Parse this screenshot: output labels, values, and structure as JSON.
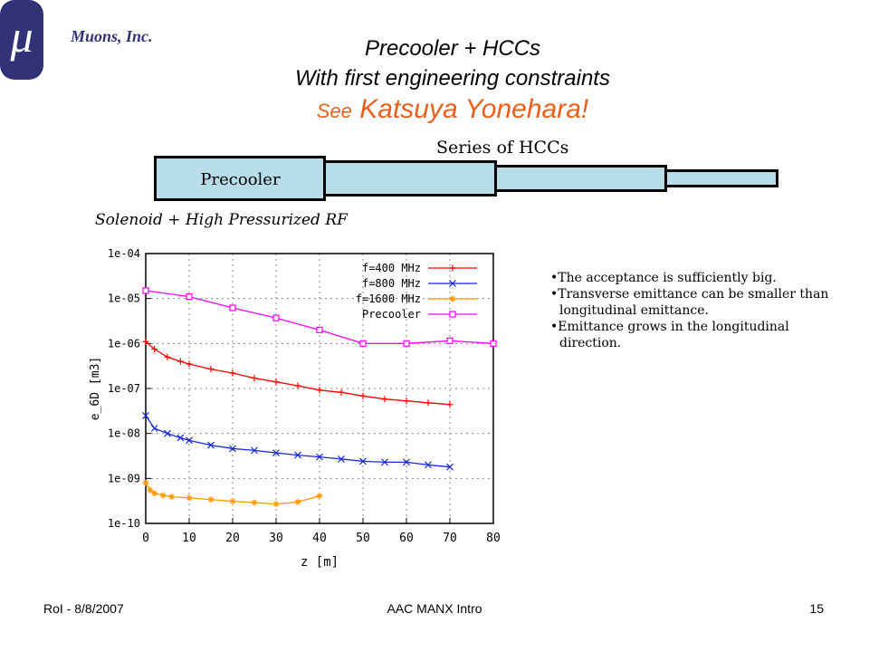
{
  "header": {
    "logo_symbol": "μ",
    "company": "Muons, Inc.",
    "title_line1": "Precooler + HCCs",
    "title_line2": "With first engineering constraints",
    "title_line3_see": "See",
    "title_line3_name": "Katsuya Yonehara!"
  },
  "diagram": {
    "hcc_label": "Series of HCCs",
    "precooler_label": "Precooler",
    "solenoid_label": "Solenoid + High Pressurized RF",
    "fill_color": "#b7dde8"
  },
  "bullets": [
    "The acceptance is sufficiently big.",
    "Transverse emittance can be smaller than longitudinal emittance.",
    "Emittance grows in the longitudinal direction."
  ],
  "footer": {
    "left": "RoI - 8/8/2007",
    "center": "AAC MANX Intro",
    "right": "15"
  },
  "chart_data": {
    "type": "line",
    "xlabel": "z [m]",
    "ylabel": "e_6D [m3]",
    "xlim": [
      0,
      80
    ],
    "ylim": [
      1e-10,
      0.0001
    ],
    "yscale": "log",
    "x_ticks": [
      "0",
      "10",
      "20",
      "30",
      "40",
      "50",
      "60",
      "70",
      "80"
    ],
    "y_ticks": [
      "1e-10",
      "1e-09",
      "1e-08",
      "1e-07",
      "1e-06",
      "1e-05",
      "1e-04"
    ],
    "grid": true,
    "legend_position": "top-right",
    "series": [
      {
        "name": "f=400 MHz",
        "color": "#ff0000",
        "marker": "plus",
        "x": [
          0,
          2,
          5,
          8,
          10,
          15,
          20,
          25,
          30,
          35,
          40,
          45,
          50,
          55,
          60,
          65,
          70
        ],
        "y": [
          1.1e-06,
          7.5e-07,
          5e-07,
          4e-07,
          3.5e-07,
          2.7e-07,
          2.2e-07,
          1.7e-07,
          1.4e-07,
          1.15e-07,
          9.2e-08,
          8.2e-08,
          6.8e-08,
          5.8e-08,
          5.3e-08,
          4.8e-08,
          4.4e-08
        ]
      },
      {
        "name": "f=800 MHz",
        "color": "#1428dc",
        "marker": "cross",
        "x": [
          0,
          2,
          5,
          8,
          10,
          15,
          20,
          25,
          30,
          35,
          40,
          45,
          50,
          55,
          60,
          65,
          70
        ],
        "y": [
          2.5e-08,
          1.3e-08,
          1e-08,
          8e-09,
          7e-09,
          5.5e-09,
          4.6e-09,
          4.2e-09,
          3.7e-09,
          3.3e-09,
          3e-09,
          2.7e-09,
          2.4e-09,
          2.3e-09,
          2.3e-09,
          2e-09,
          1.8e-09
        ]
      },
      {
        "name": "f=1600 MHz",
        "color": "#ff9900",
        "marker": "star",
        "x": [
          0,
          1,
          2,
          4,
          6,
          10,
          15,
          20,
          25,
          30,
          35,
          40
        ],
        "y": [
          8e-10,
          5.5e-10,
          4.7e-10,
          4.2e-10,
          3.9e-10,
          3.7e-10,
          3.4e-10,
          3.1e-10,
          2.9e-10,
          2.7e-10,
          3e-10,
          4.1e-10
        ]
      },
      {
        "name": "Precooler",
        "color": "#ff00ff",
        "marker": "square",
        "x": [
          0,
          10,
          20,
          30,
          40,
          50,
          60,
          70,
          80
        ],
        "y": [
          1.5e-05,
          1.1e-05,
          6.2e-06,
          3.7e-06,
          2e-06,
          1e-06,
          1e-06,
          1.15e-06,
          1e-06
        ]
      }
    ]
  }
}
